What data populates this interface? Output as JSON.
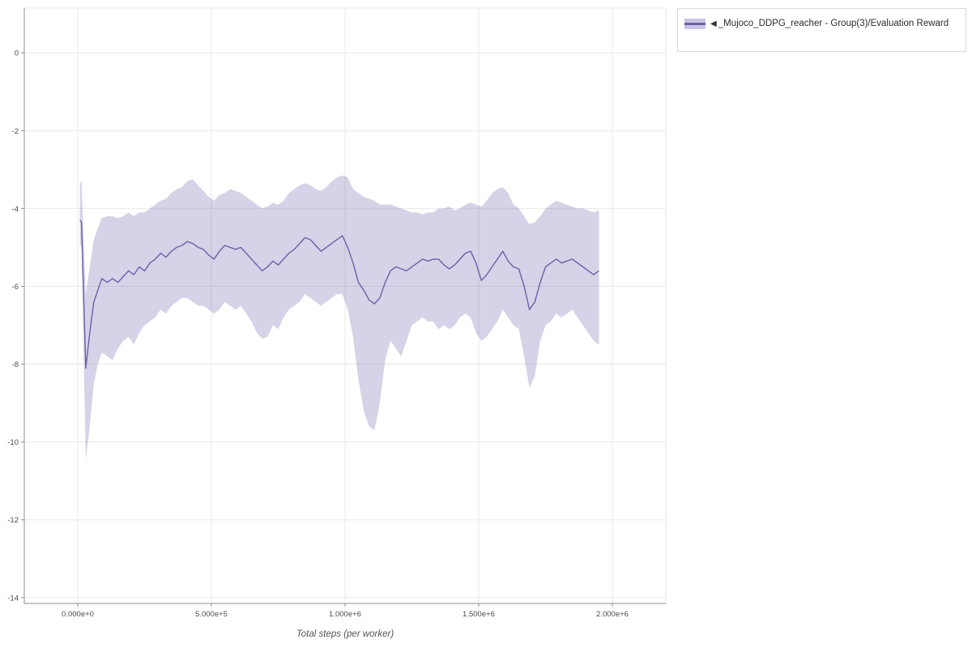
{
  "legend": {
    "arrow": "◀",
    "label": "_Mujoco_DDPG_reacher - Group(3)/Evaluation Reward"
  },
  "chart_data": {
    "type": "line",
    "title": "",
    "xlabel": "Total steps (per worker)",
    "ylabel": "",
    "xlim": [
      -200000,
      2200000
    ],
    "ylim": [
      -14.15,
      1.15
    ],
    "grid": true,
    "legend_position": "top-right",
    "x_ticks": [
      {
        "value": 0,
        "label": "0.000e+0"
      },
      {
        "value": 500000,
        "label": "5.000e+5"
      },
      {
        "value": 1000000,
        "label": "1.000e+6"
      },
      {
        "value": 1500000,
        "label": "1.500e+6"
      },
      {
        "value": 2000000,
        "label": "2.000e+6"
      }
    ],
    "y_ticks": [
      {
        "value": 0,
        "label": "0"
      },
      {
        "value": -2,
        "label": "-2"
      },
      {
        "value": -4,
        "label": "-4"
      },
      {
        "value": -6,
        "label": "-6"
      },
      {
        "value": -8,
        "label": "-8"
      },
      {
        "value": -10,
        "label": "-10"
      },
      {
        "value": -12,
        "label": "-12"
      },
      {
        "value": -14,
        "label": "-14"
      }
    ],
    "colors": {
      "line": "#6962a8",
      "band": "rgba(105,98,168,0.28)",
      "grid": "#e8e8e8",
      "axis": "#8c8c8c",
      "tick": "#4a4a4a"
    },
    "series": [
      {
        "name": "_Mujoco_DDPG_reacher - Group(3)/Evaluation Reward",
        "point_format": [
          "step",
          "mean",
          "band_low",
          "band_high"
        ],
        "points": [
          [
            8000,
            -4.3,
            -4.9,
            -3.35
          ],
          [
            14000,
            -4.35,
            -5.0,
            -3.3
          ],
          [
            30000,
            -8.1,
            -10.45,
            -6.2
          ],
          [
            45000,
            -7.2,
            -9.6,
            -5.5
          ],
          [
            60000,
            -6.4,
            -8.5,
            -4.8
          ],
          [
            75000,
            -6.1,
            -8.0,
            -4.5
          ],
          [
            90000,
            -5.8,
            -7.7,
            -4.25
          ],
          [
            110000,
            -5.9,
            -7.8,
            -4.2
          ],
          [
            130000,
            -5.8,
            -7.9,
            -4.2
          ],
          [
            150000,
            -5.9,
            -7.6,
            -4.25
          ],
          [
            170000,
            -5.75,
            -7.4,
            -4.2
          ],
          [
            190000,
            -5.6,
            -7.3,
            -4.1
          ],
          [
            210000,
            -5.7,
            -7.5,
            -4.2
          ],
          [
            230000,
            -5.5,
            -7.2,
            -4.1
          ],
          [
            250000,
            -5.6,
            -7.0,
            -4.1
          ],
          [
            270000,
            -5.4,
            -6.9,
            -4.0
          ],
          [
            290000,
            -5.3,
            -6.8,
            -3.9
          ],
          [
            310000,
            -5.15,
            -6.6,
            -3.8
          ],
          [
            330000,
            -5.25,
            -6.7,
            -3.75
          ],
          [
            350000,
            -5.1,
            -6.5,
            -3.6
          ],
          [
            370000,
            -5.0,
            -6.4,
            -3.5
          ],
          [
            390000,
            -4.95,
            -6.3,
            -3.45
          ],
          [
            410000,
            -4.85,
            -6.3,
            -3.3
          ],
          [
            430000,
            -4.9,
            -6.4,
            -3.25
          ],
          [
            450000,
            -5.0,
            -6.5,
            -3.4
          ],
          [
            470000,
            -5.05,
            -6.5,
            -3.55
          ],
          [
            490000,
            -5.2,
            -6.6,
            -3.7
          ],
          [
            510000,
            -5.3,
            -6.7,
            -3.8
          ],
          [
            530000,
            -5.1,
            -6.6,
            -3.65
          ],
          [
            550000,
            -4.95,
            -6.4,
            -3.6
          ],
          [
            570000,
            -5.0,
            -6.5,
            -3.5
          ],
          [
            590000,
            -5.05,
            -6.6,
            -3.55
          ],
          [
            610000,
            -5.0,
            -6.5,
            -3.6
          ],
          [
            630000,
            -5.15,
            -6.7,
            -3.7
          ],
          [
            650000,
            -5.3,
            -6.9,
            -3.8
          ],
          [
            670000,
            -5.45,
            -7.2,
            -3.9
          ],
          [
            690000,
            -5.6,
            -7.35,
            -4.0
          ],
          [
            710000,
            -5.5,
            -7.3,
            -3.95
          ],
          [
            730000,
            -5.35,
            -7.0,
            -3.85
          ],
          [
            750000,
            -5.45,
            -7.1,
            -3.9
          ],
          [
            770000,
            -5.3,
            -6.8,
            -3.8
          ],
          [
            790000,
            -5.15,
            -6.6,
            -3.6
          ],
          [
            810000,
            -5.05,
            -6.5,
            -3.5
          ],
          [
            830000,
            -4.9,
            -6.4,
            -3.4
          ],
          [
            850000,
            -4.75,
            -6.2,
            -3.35
          ],
          [
            870000,
            -4.8,
            -6.3,
            -3.4
          ],
          [
            890000,
            -4.95,
            -6.4,
            -3.5
          ],
          [
            910000,
            -5.1,
            -6.5,
            -3.55
          ],
          [
            930000,
            -5.0,
            -6.4,
            -3.45
          ],
          [
            950000,
            -4.9,
            -6.3,
            -3.3
          ],
          [
            970000,
            -4.8,
            -6.2,
            -3.2
          ],
          [
            990000,
            -4.7,
            -6.2,
            -3.15
          ],
          [
            1010000,
            -5.0,
            -6.6,
            -3.2
          ],
          [
            1030000,
            -5.4,
            -7.3,
            -3.5
          ],
          [
            1050000,
            -5.9,
            -8.4,
            -3.6
          ],
          [
            1070000,
            -6.1,
            -9.2,
            -3.7
          ],
          [
            1090000,
            -6.35,
            -9.6,
            -3.75
          ],
          [
            1110000,
            -6.45,
            -9.7,
            -3.8
          ],
          [
            1130000,
            -6.3,
            -9.0,
            -3.9
          ],
          [
            1150000,
            -5.9,
            -7.9,
            -3.9
          ],
          [
            1170000,
            -5.6,
            -7.4,
            -3.9
          ],
          [
            1190000,
            -5.5,
            -7.6,
            -3.95
          ],
          [
            1210000,
            -5.55,
            -7.8,
            -4.0
          ],
          [
            1230000,
            -5.6,
            -7.4,
            -4.05
          ],
          [
            1250000,
            -5.5,
            -7.0,
            -4.1
          ],
          [
            1270000,
            -5.4,
            -6.9,
            -4.1
          ],
          [
            1290000,
            -5.3,
            -6.8,
            -4.15
          ],
          [
            1310000,
            -5.35,
            -6.9,
            -4.1
          ],
          [
            1330000,
            -5.3,
            -6.9,
            -4.1
          ],
          [
            1350000,
            -5.3,
            -7.1,
            -4.0
          ],
          [
            1370000,
            -5.45,
            -7.0,
            -4.0
          ],
          [
            1390000,
            -5.55,
            -7.1,
            -3.95
          ],
          [
            1410000,
            -5.45,
            -7.0,
            -4.05
          ],
          [
            1430000,
            -5.3,
            -6.8,
            -4.0
          ],
          [
            1450000,
            -5.15,
            -6.7,
            -3.9
          ],
          [
            1470000,
            -5.1,
            -6.8,
            -3.85
          ],
          [
            1490000,
            -5.4,
            -7.2,
            -3.9
          ],
          [
            1510000,
            -5.85,
            -7.4,
            -3.95
          ],
          [
            1530000,
            -5.7,
            -7.3,
            -3.8
          ],
          [
            1550000,
            -5.5,
            -7.1,
            -3.6
          ],
          [
            1570000,
            -5.3,
            -6.9,
            -3.5
          ],
          [
            1590000,
            -5.1,
            -6.6,
            -3.45
          ],
          [
            1610000,
            -5.35,
            -6.8,
            -3.6
          ],
          [
            1630000,
            -5.5,
            -7.0,
            -3.9
          ],
          [
            1650000,
            -5.55,
            -7.1,
            -4.0
          ],
          [
            1670000,
            -6.0,
            -7.8,
            -4.2
          ],
          [
            1690000,
            -6.6,
            -8.6,
            -4.4
          ],
          [
            1710000,
            -6.4,
            -8.3,
            -4.35
          ],
          [
            1730000,
            -5.9,
            -7.4,
            -4.2
          ],
          [
            1750000,
            -5.5,
            -7.0,
            -4.0
          ],
          [
            1770000,
            -5.4,
            -6.9,
            -3.9
          ],
          [
            1790000,
            -5.3,
            -6.7,
            -3.8
          ],
          [
            1810000,
            -5.4,
            -6.8,
            -3.85
          ],
          [
            1830000,
            -5.35,
            -6.7,
            -3.9
          ],
          [
            1850000,
            -5.3,
            -6.6,
            -3.95
          ],
          [
            1870000,
            -5.4,
            -6.8,
            -4.0
          ],
          [
            1890000,
            -5.5,
            -7.0,
            -4.0
          ],
          [
            1910000,
            -5.6,
            -7.2,
            -4.05
          ],
          [
            1930000,
            -5.7,
            -7.4,
            -4.1
          ],
          [
            1950000,
            -5.6,
            -7.5,
            -4.05
          ]
        ]
      }
    ]
  }
}
